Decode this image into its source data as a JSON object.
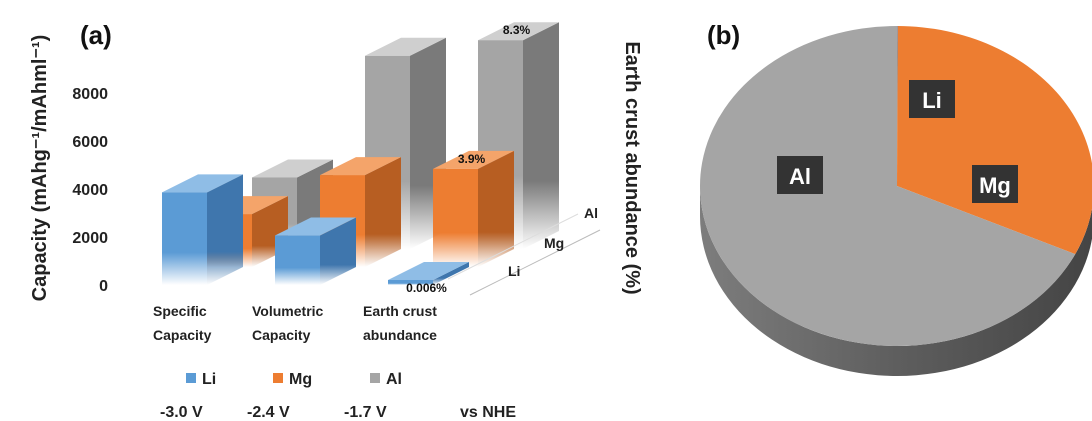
{
  "chart_data": [
    {
      "panel_label": "(a)",
      "type": "bar",
      "ylabel": "Capacity (mAhg⁻¹/mAhml⁻¹)",
      "y2label": "Earth crust abundance (%)",
      "ylim": [
        0,
        10000
      ],
      "yticks": [
        0,
        2000,
        4000,
        6000,
        8000
      ],
      "categories": [
        {
          "line1": "Specific",
          "line2": "Capacity"
        },
        {
          "line1": "Volumetric",
          "line2": "Capacity"
        },
        {
          "line1": "Earth crust",
          "line2": "abundance"
        }
      ],
      "depth_labels": [
        "Li",
        "Mg",
        "Al"
      ],
      "series": [
        {
          "name": "Li",
          "color": "#5b9bd5",
          "values": [
            3860,
            2060,
            0.006
          ],
          "value_labels": [
            "",
            "",
            "0.006%"
          ]
        },
        {
          "name": "Mg",
          "color": "#ed7d31",
          "values": [
            2205,
            3830,
            3.9
          ],
          "value_labels": [
            "",
            "",
            "3.9%"
          ]
        },
        {
          "name": "Al",
          "color": "#a5a5a5",
          "values": [
            2980,
            8050,
            8.3
          ],
          "value_labels": [
            "",
            "",
            "8.3%"
          ]
        }
      ],
      "legend": [
        {
          "name": "Li",
          "color": "#5b9bd5",
          "voltage": "-3.0 V"
        },
        {
          "name": "Mg",
          "color": "#ed7d31",
          "voltage": "-2.4 V"
        },
        {
          "name": "Al",
          "color": "#a5a5a5",
          "voltage": "-1.7 V"
        }
      ],
      "voltage_suffix": "vs NHE",
      "legend_placement": "bottom",
      "grid": false
    },
    {
      "panel_label": "(b)",
      "type": "pie",
      "slices": [
        {
          "label": "Li",
          "value": 0.006,
          "color": "#5b9bd5"
        },
        {
          "label": "Mg",
          "value": 3.9,
          "color": "#ed7d31"
        },
        {
          "label": "Al",
          "value": 8.3,
          "color": "#a5a5a5"
        }
      ]
    }
  ]
}
